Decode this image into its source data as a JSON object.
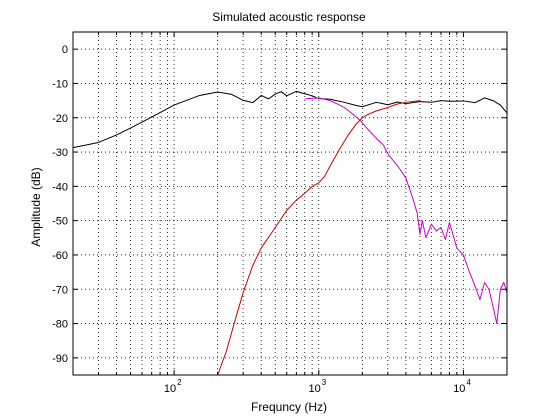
{
  "chart_data": {
    "type": "line",
    "title": "Simulated acoustic response",
    "xlabel": "Frequncy (Hz)",
    "ylabel": "Amplitude (dB)",
    "xscale": "log",
    "xlim": [
      20,
      20000
    ],
    "ylim": [
      -95,
      5
    ],
    "grid": true,
    "grid_style": "dotted",
    "legend": "none",
    "y_ticks": [
      0,
      -10,
      -20,
      -30,
      -40,
      -50,
      -60,
      -70,
      -80,
      -90
    ],
    "x_ticks": [
      {
        "base": "10",
        "exp": "2",
        "value": 100
      },
      {
        "base": "10",
        "exp": "3",
        "value": 1000
      },
      {
        "base": "10",
        "exp": "4",
        "value": 10000
      }
    ],
    "series": [
      {
        "color": "#000000",
        "x": [
          20,
          30,
          40,
          50,
          70,
          100,
          150,
          200,
          250,
          300,
          350,
          400,
          450,
          500,
          550,
          600,
          700,
          800,
          900,
          1000,
          1200,
          1500,
          1800,
          2000,
          2500,
          3000,
          3500,
          4000,
          5000,
          6000,
          7000,
          8000,
          10000,
          12000,
          13000,
          14000,
          16000,
          18000,
          20000
        ],
        "y": [
          -28.7,
          -27.2,
          -25.0,
          -23.0,
          -19.8,
          -16.3,
          -13.5,
          -12.5,
          -13.2,
          -14.9,
          -15.6,
          -13.5,
          -14.5,
          -13.1,
          -12.4,
          -13.6,
          -12.3,
          -13.0,
          -13.6,
          -14.4,
          -14.6,
          -15.5,
          -16.4,
          -16.8,
          -15.5,
          -16.2,
          -15.4,
          -15.9,
          -15.3,
          -15.5,
          -15.0,
          -15.2,
          -15.1,
          -15.6,
          -14.9,
          -14.2,
          -15.0,
          -16.3,
          -18.6
        ]
      },
      {
        "color": "#cc0000",
        "x": [
          200,
          230,
          260,
          300,
          350,
          400,
          500,
          600,
          700,
          800,
          900,
          1000,
          1100,
          1200,
          1400,
          1600,
          1800,
          2000,
          2200,
          2500,
          3000,
          3500,
          4000,
          5000
        ],
        "y": [
          -95,
          -88,
          -80,
          -71,
          -63,
          -58,
          -52,
          -47,
          -44,
          -42,
          -40,
          -39,
          -37,
          -34,
          -29,
          -25,
          -22,
          -20,
          -19,
          -18,
          -17,
          -16,
          -15.5,
          -15
        ]
      },
      {
        "color": "#cc00cc",
        "x": [
          800,
          1000,
          1200,
          1500,
          1700,
          1900,
          2000,
          2200,
          2500,
          2800,
          3000,
          3500,
          4000,
          4500,
          4800,
          5000,
          5200,
          5500,
          6000,
          6500,
          7000,
          7500,
          8000,
          9000,
          10000,
          11000,
          12000,
          13000,
          14000,
          15000,
          16000,
          17000,
          18000,
          19000,
          20000
        ],
        "y": [
          -14.5,
          -14.2,
          -15.0,
          -17.0,
          -18.8,
          -20.5,
          -21.5,
          -23.5,
          -26.0,
          -28.0,
          -30.5,
          -34.0,
          -37.5,
          -44.0,
          -48.0,
          -54.0,
          -50.0,
          -55.0,
          -51.0,
          -53.0,
          -52.0,
          -55.5,
          -50.5,
          -58.0,
          -60.0,
          -65.0,
          -69.0,
          -73.0,
          -68.0,
          -70.0,
          -75.0,
          -80.0,
          -70.0,
          -68.0,
          -71.0
        ]
      }
    ]
  }
}
